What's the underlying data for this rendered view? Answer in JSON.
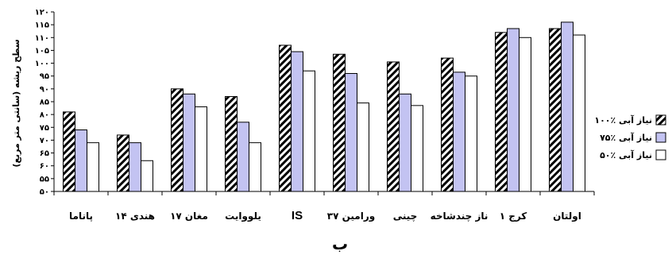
{
  "colors": {
    "s100": "hatch-black-white",
    "s75": "#c3c3f2",
    "s50": "#ffffff",
    "axis": "#000000"
  },
  "caption": "ب",
  "chart_data": {
    "type": "bar",
    "title": "",
    "xlabel": "",
    "ylabel": "سطح ریشه (سانتی متر مربع)",
    "ylim": [
      50,
      120
    ],
    "yticks": [
      50,
      55,
      60,
      65,
      70,
      75,
      80,
      85,
      90,
      95,
      100,
      105,
      110,
      115,
      120
    ],
    "ytick_labels": [
      "۵۰",
      "۵۵",
      "۶۰",
      "۶۵",
      "۷۰",
      "۷۵",
      "۸۰",
      "۸۵",
      "۹۰",
      "۹۵",
      "۱۰۰",
      "۱۰۵",
      "۱۱۰",
      "۱۱۵",
      "۱۲۰"
    ],
    "grid": false,
    "legend_position": "right",
    "categories": [
      "پاناما",
      "هندی ۱۴",
      "مغان ۱۷",
      "یلووایت",
      "IS",
      "ورامین ۳۷",
      "چینی",
      "ناز چندشاخه",
      "کرج ۱",
      "اولتان"
    ],
    "series": [
      {
        "name": "۱۰۰٪ نیاز آبی",
        "values": [
          81,
          72,
          90,
          87,
          107,
          103.5,
          100.5,
          102,
          112,
          113.5
        ]
      },
      {
        "name": "۷۵٪ نیاز آبی",
        "values": [
          74,
          69,
          88,
          77,
          104.5,
          96,
          88,
          96.5,
          113.5,
          116
        ]
      },
      {
        "name": "۵۰٪ نیاز آبی",
        "values": [
          69,
          62,
          83,
          69,
          97,
          84.5,
          83.5,
          95,
          110,
          111
        ]
      }
    ]
  }
}
